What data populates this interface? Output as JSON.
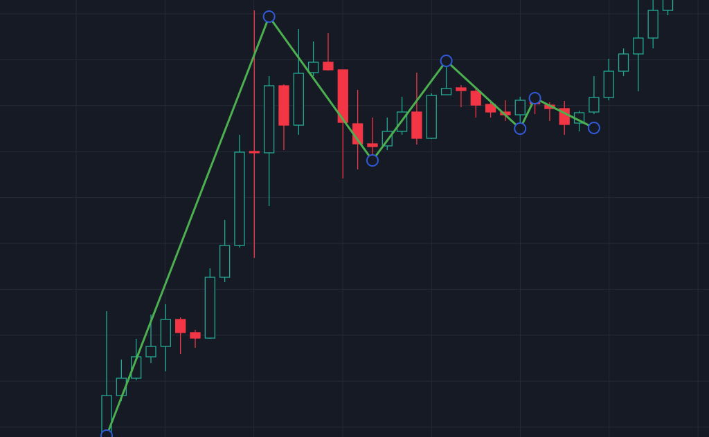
{
  "chart_data": {
    "type": "candlestick",
    "up_color": "#22ab94",
    "down_color": "#f23645",
    "ylim": [
      0,
      632
    ],
    "grid": true,
    "open": [
      -3,
      60,
      85,
      116,
      131,
      170,
      151,
      143,
      231,
      277,
      413,
      411,
      508,
      451,
      527,
      542,
      531,
      453,
      424,
      421,
      442,
      470,
      432,
      495,
      505,
      500,
      481,
      470,
      466,
      487,
      480,
      475,
      454,
      470,
      491,
      529,
      554,
      577,
      617
    ],
    "high": [
      182,
      112,
      142,
      177,
      192,
      173,
      155,
      244,
      314,
      437,
      617,
      522,
      510,
      590,
      572,
      584,
      531,
      502,
      462,
      462,
      492,
      527,
      497,
      544,
      509,
      504,
      487,
      487,
      492,
      492,
      484,
      486,
      472,
      522,
      547,
      562,
      640,
      640,
      640
    ],
    "low": [
      -8,
      52,
      82,
      107,
      95,
      120,
      129,
      142,
      224,
      274,
      259,
      334,
      415,
      437,
      522,
      530,
      374,
      387,
      400,
      415,
      437,
      423,
      431,
      495,
      477,
      462,
      462,
      457,
      447,
      467,
      457,
      437,
      442,
      467,
      487,
      522,
      500,
      562,
      610
    ],
    "close": [
      60,
      85,
      116,
      131,
      170,
      151,
      143,
      231,
      277,
      412,
      411,
      508,
      451,
      526,
      542,
      531,
      455,
      424,
      420,
      442,
      470,
      432,
      494,
      504,
      501,
      480,
      470,
      466,
      487,
      482,
      475,
      452,
      469,
      491,
      529,
      554,
      577,
      617,
      635
    ],
    "overlay": {
      "type": "line",
      "color": "#4caf50",
      "marker_color": "#2f5bd8",
      "x": [
        0,
        11,
        18,
        23,
        28,
        29,
        33
      ],
      "values": [
        2,
        608,
        400,
        544,
        446,
        490,
        447
      ]
    }
  }
}
